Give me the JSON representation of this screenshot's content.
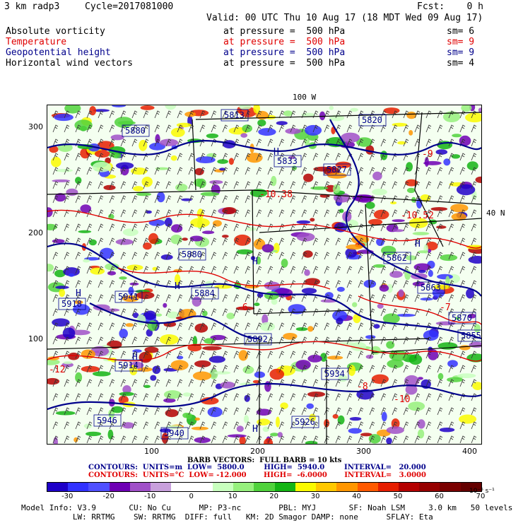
{
  "header": {
    "model": "3 km radp3",
    "cycle": "Cycle=2017081000",
    "forecast": "Fcst:    0 h",
    "valid": "Valid: 00 UTC Thu 10 Aug 17 (18 MDT Wed 09 Aug 17)"
  },
  "fields": [
    {
      "name": "Absolute vorticity",
      "pressure": "at pressure =  500 hPa",
      "smooth": "sm= 6",
      "color": "#000000"
    },
    {
      "name": "Temperature",
      "pressure": "at pressure =  500 hPa",
      "smooth": "sm= 9",
      "color": "#e00000"
    },
    {
      "name": "Geopotential height",
      "pressure": "at pressure =  500 hPa",
      "smooth": "sm= 9",
      "color": "#00008b"
    },
    {
      "name": "Horizontal wind vectors",
      "pressure": "at pressure =  500 hPa",
      "smooth": "sm= 4",
      "color": "#000000"
    }
  ],
  "map": {
    "top_label": "100 W",
    "right_label": "40 N",
    "y_ticks": [
      "300",
      "200",
      "100"
    ],
    "x_ticks": [
      "100",
      "200",
      "300",
      "400"
    ],
    "height_labels": [
      "5880",
      "5833",
      "5827",
      "5862",
      "5863",
      "5941",
      "5918",
      "5884",
      "5892",
      "5914",
      "5940",
      "5946",
      "5926",
      "5934",
      "5813",
      "5820",
      "5880",
      "5870",
      "5855"
    ],
    "highs": [
      "H",
      "H",
      "H",
      "H",
      "H",
      "H",
      "H"
    ],
    "temp_labels": [
      "-10.38",
      "-10.52",
      "-12",
      "-9",
      "-6",
      "-8",
      "-7",
      "-10"
    ]
  },
  "legend": {
    "barb": "BARB VECTORS:  FULL BARB = 10 kts",
    "contours_blue": "CONTOURS:  UNITS=m  LOW=  5800.0        HIGH=  5940.0        INTERVAL=   20.000",
    "contours_red": "CONTOURS:  UNITS=°C  LOW= -12.000       HIGH=  -6.0000       INTERVAL=   3.0000",
    "colorbar_ticks": [
      "-30",
      "-20",
      "-10",
      "0",
      "10",
      "20",
      "30",
      "40",
      "50",
      "60",
      "70"
    ],
    "colorbar_unit": "10⁻⁵ s⁻¹",
    "colorbar_colors": [
      "#1e00c8",
      "#3232ff",
      "#5050ff",
      "#6e00b4",
      "#a050c8",
      "#c8a0dc",
      "#ffffff",
      "#ffffff",
      "#c8ffbe",
      "#96f07d",
      "#50d23c",
      "#14b414",
      "#fafa00",
      "#ffc800",
      "#ff9600",
      "#ff5a00",
      "#e61e00",
      "#b40000",
      "#960000",
      "#7a0000",
      "#640000"
    ]
  },
  "footer": {
    "line1": "Model Info: V3.9       CU: No Cu      MP: P3-nc        PBL: MYJ       SF: Noah LSM     3.0 km   50 levels    6 sec",
    "line2": "           LW: RRTMG    SW: RRTMG  DIFF: full   KM: 2D Smagor DAMP: none      SFLAY: Eta"
  }
}
